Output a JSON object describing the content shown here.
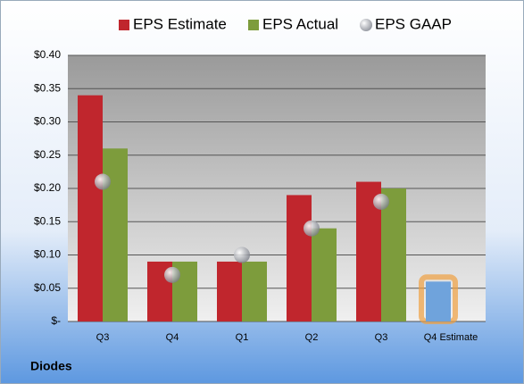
{
  "chart_data": {
    "type": "bar",
    "categories": [
      "Q3",
      "Q4",
      "Q1",
      "Q2",
      "Q3",
      "Q4 Estimate"
    ],
    "series": [
      {
        "name": "EPS Estimate",
        "color": "#c0262d",
        "colors": [
          "#c0262d",
          "#c0262d",
          "#c0262d",
          "#c0262d",
          "#c0262d",
          "#6fa3dc"
        ],
        "values": [
          0.34,
          0.09,
          0.09,
          0.19,
          0.21,
          0.06
        ]
      },
      {
        "name": "EPS Actual",
        "color": "#7d9c3c",
        "values": [
          0.26,
          0.09,
          0.09,
          0.14,
          0.2,
          null
        ]
      },
      {
        "name": "EPS GAAP",
        "color": "#a8acb4",
        "marker": "circle",
        "values": [
          0.21,
          0.07,
          0.1,
          0.14,
          0.18,
          null
        ]
      }
    ],
    "ylim": [
      0,
      0.4
    ],
    "yticks": [
      {
        "value": 0,
        "label": "$-"
      },
      {
        "value": 0.05,
        "label": "$0.05"
      },
      {
        "value": 0.1,
        "label": "$0.10"
      },
      {
        "value": 0.15,
        "label": "$0.15"
      },
      {
        "value": 0.2,
        "label": "$0.20"
      },
      {
        "value": 0.25,
        "label": "$0.25"
      },
      {
        "value": 0.3,
        "label": "$0.30"
      },
      {
        "value": 0.35,
        "label": "$0.35"
      },
      {
        "value": 0.4,
        "label": "$0.40"
      }
    ],
    "grid": true,
    "footer": "Diodes"
  }
}
